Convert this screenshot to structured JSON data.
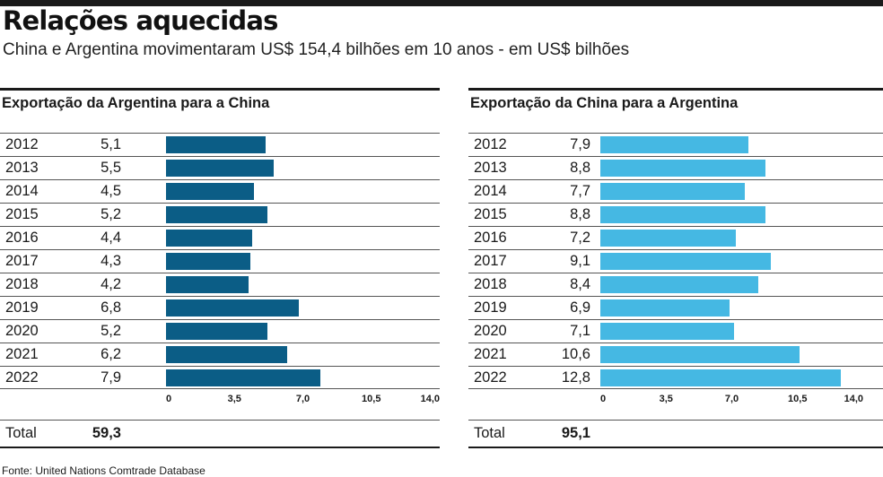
{
  "header": {
    "title": "Relações aquecidas",
    "subtitle": "China e Argentina movimentaram US$ 154,4 bilhões em 10 anos - em US$ bilhões"
  },
  "source": "Fonte: United Nations Comtrade Database",
  "colors": {
    "left_bar": "#0b5d86",
    "right_bar": "#45b8e3",
    "rule": "#1a1a1a"
  },
  "chart_data": [
    {
      "type": "bar",
      "orientation": "horizontal",
      "title": "Exportação da Argentina para a China",
      "categories": [
        "2012",
        "2013",
        "2014",
        "2015",
        "2016",
        "2017",
        "2018",
        "2019",
        "2020",
        "2021",
        "2022"
      ],
      "values": [
        5.1,
        5.5,
        4.5,
        5.2,
        4.4,
        4.3,
        4.2,
        6.8,
        5.2,
        6.2,
        7.9
      ],
      "value_labels": [
        "5,1",
        "5,5",
        "4,5",
        "5,2",
        "4,4",
        "4,3",
        "4,2",
        "6,8",
        "5,2",
        "6,2",
        "7,9"
      ],
      "xlim": [
        0,
        14
      ],
      "ticks": [
        0,
        3.5,
        7,
        10.5,
        14
      ],
      "tick_labels": [
        "0",
        "3,5",
        "7,0",
        "10,5",
        "14,0"
      ],
      "total_label": "Total",
      "total_value": "59,3"
    },
    {
      "type": "bar",
      "orientation": "horizontal",
      "title": "Exportação da China para a Argentina",
      "categories": [
        "2012",
        "2013",
        "2014",
        "2015",
        "2016",
        "2017",
        "2018",
        "2019",
        "2020",
        "2021",
        "2022"
      ],
      "values": [
        7.9,
        8.8,
        7.7,
        8.8,
        7.2,
        9.1,
        8.4,
        6.9,
        7.1,
        10.6,
        12.8
      ],
      "value_labels": [
        "7,9",
        "8,8",
        "7,7",
        "8,8",
        "7,2",
        "9,1",
        "8,4",
        "6,9",
        "7,1",
        "10,6",
        "12,8"
      ],
      "xlim": [
        0,
        14
      ],
      "ticks": [
        0,
        3.5,
        7,
        10.5,
        14
      ],
      "tick_labels": [
        "0",
        "3,5",
        "7,0",
        "10,5",
        "14,0"
      ],
      "total_label": "Total",
      "total_value": "95,1"
    }
  ]
}
